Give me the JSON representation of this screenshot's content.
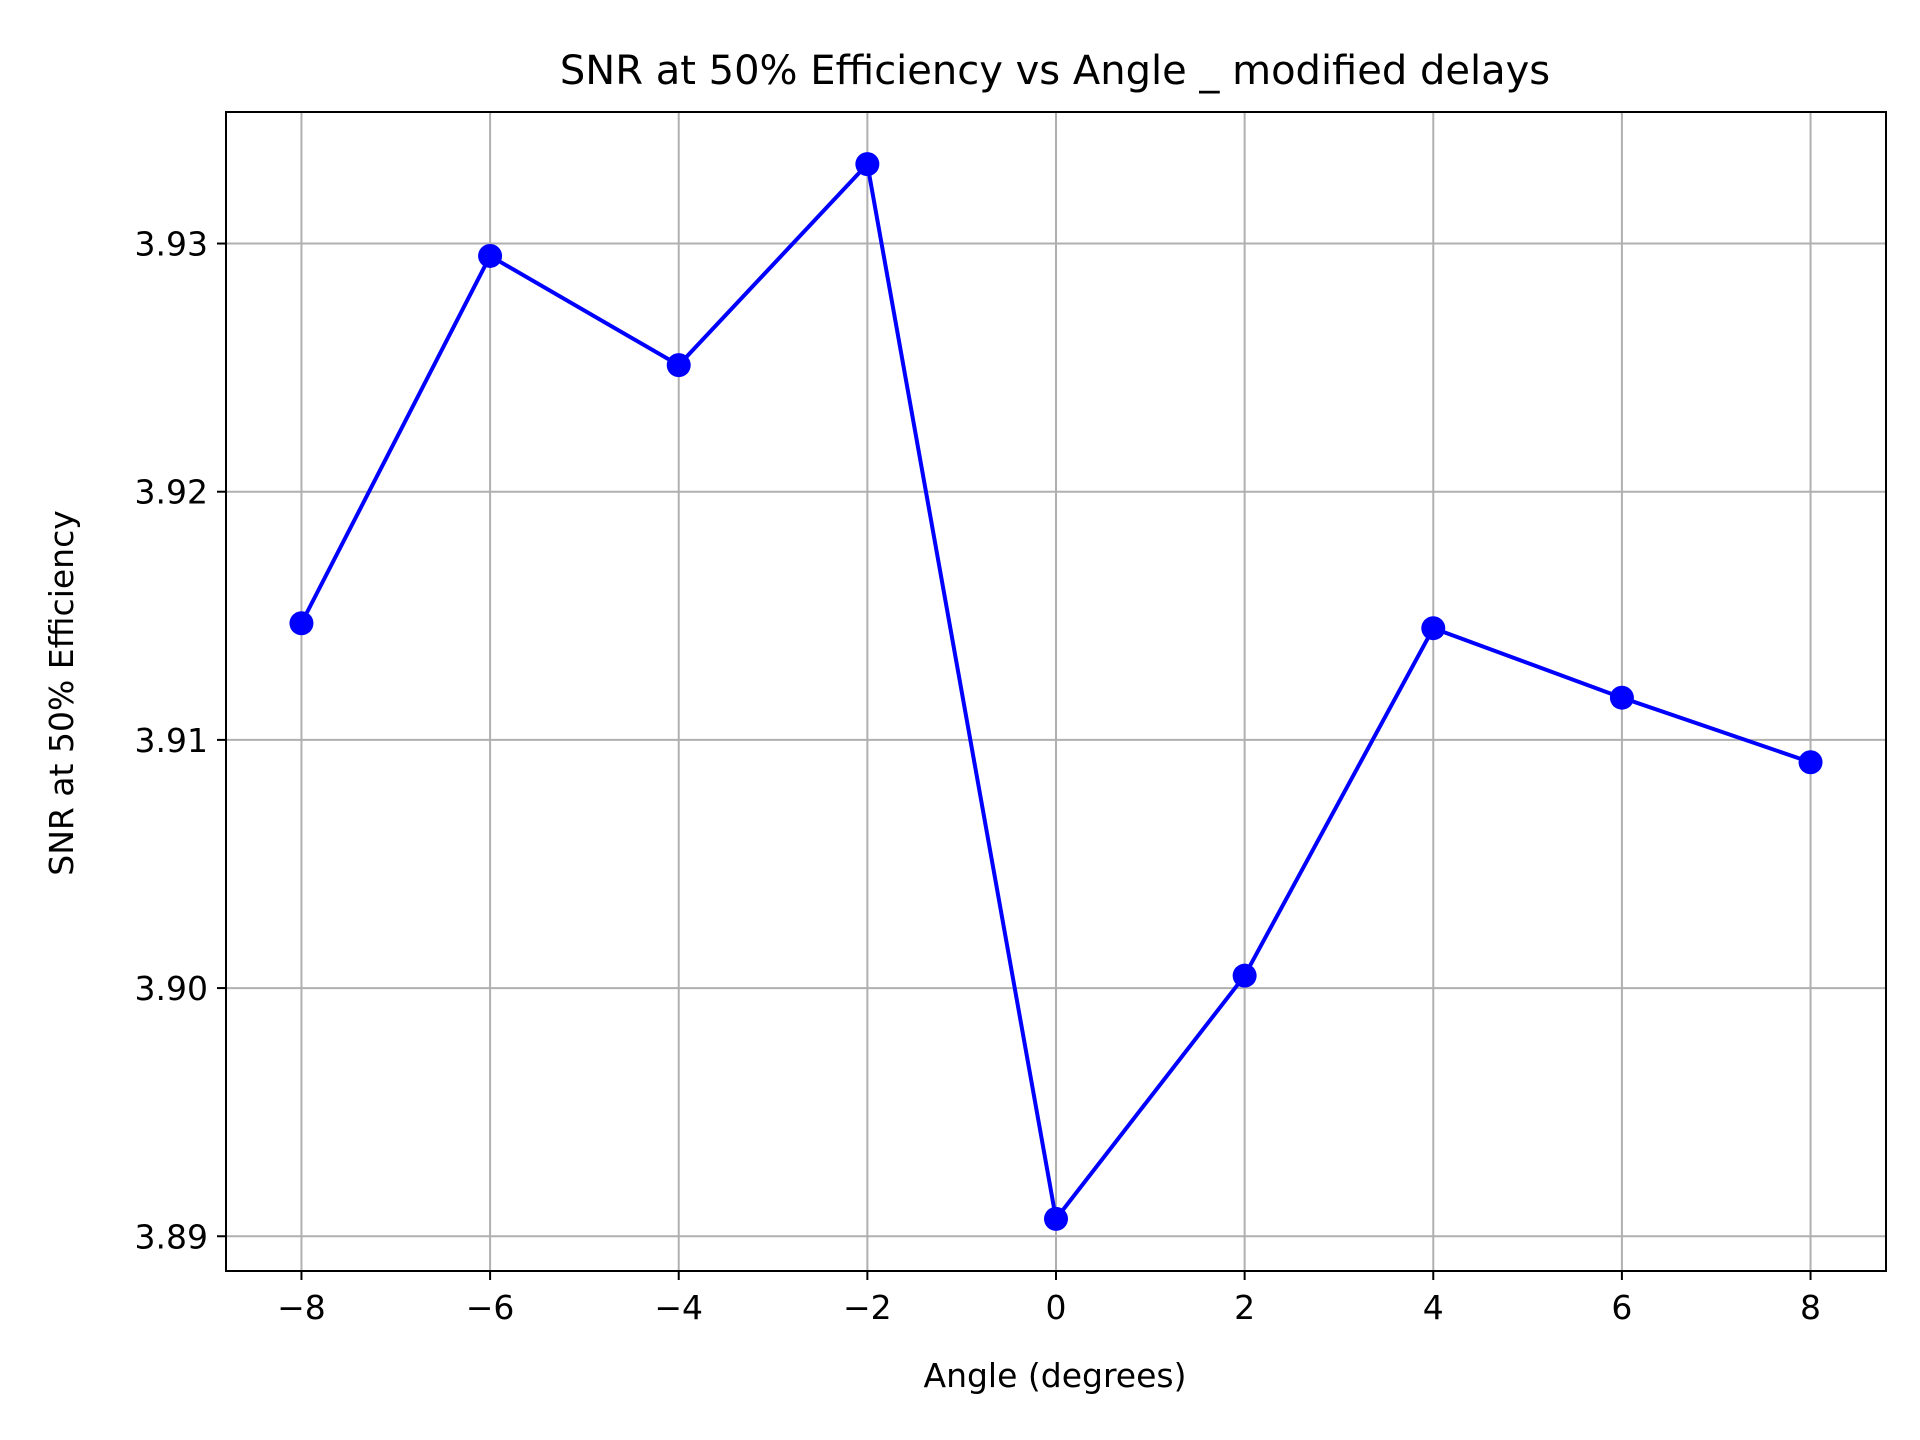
{
  "chart_data": {
    "type": "line",
    "title": "SNR at 50% Efficiency vs Angle _ modified delays",
    "xlabel": "Angle (degrees)",
    "ylabel": "SNR at 50% Efficiency",
    "x": [
      -8,
      -6,
      -4,
      -2,
      0,
      2,
      4,
      6,
      8
    ],
    "series": [
      {
        "values": [
          3.9147,
          3.9295,
          3.9251,
          3.9332,
          3.8907,
          3.9005,
          3.9145,
          3.9117,
          3.9091
        ],
        "color": "#0000ff",
        "marker": "circle"
      }
    ],
    "xticks": [
      -8,
      -6,
      -4,
      -2,
      0,
      2,
      4,
      6,
      8
    ],
    "xtick_labels": [
      "−8",
      "−6",
      "−4",
      "−2",
      "0",
      "2",
      "4",
      "6",
      "8"
    ],
    "yticks": [
      3.89,
      3.9,
      3.91,
      3.92,
      3.93
    ],
    "ytick_labels": [
      "3.89",
      "3.90",
      "3.91",
      "3.92",
      "3.93"
    ],
    "xlim": [
      -8.8,
      8.8
    ],
    "ylim": [
      3.8886,
      3.9353
    ],
    "grid": true,
    "legend": "none"
  }
}
